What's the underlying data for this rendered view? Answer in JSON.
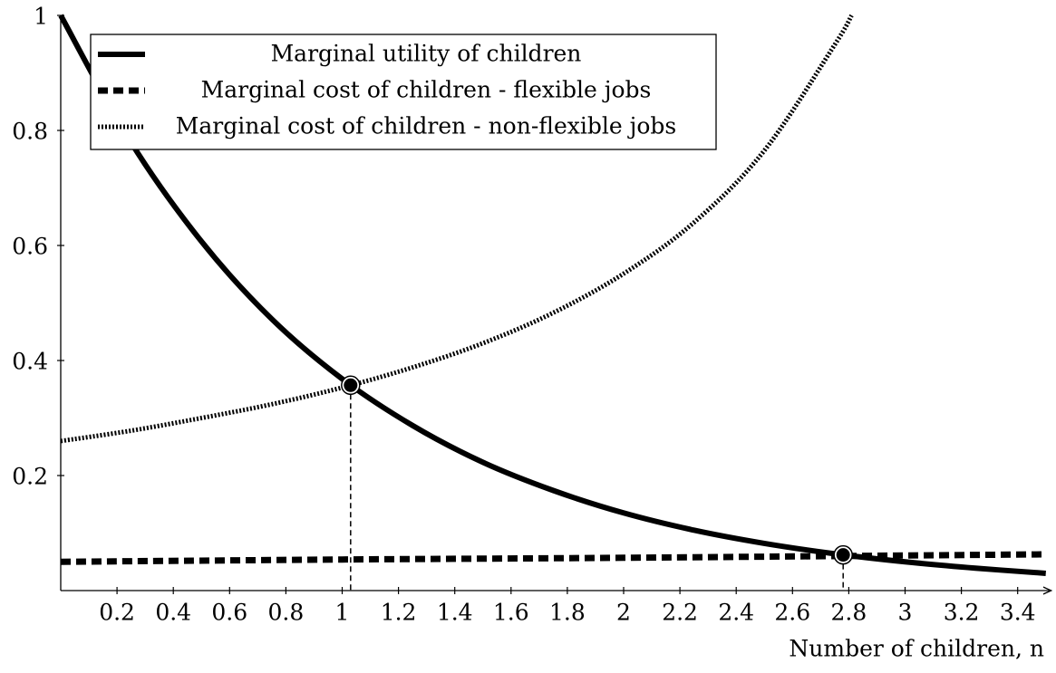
{
  "chart_data": {
    "type": "line",
    "xlabel": "Number of children, n",
    "xlim": [
      0,
      3.5
    ],
    "ylim": [
      0,
      1
    ],
    "xticks": [
      0.2,
      0.4,
      0.6,
      0.8,
      1,
      1.2,
      1.4,
      1.6,
      1.8,
      2,
      2.2,
      2.4,
      2.6,
      2.8,
      3,
      3.2,
      3.4
    ],
    "yticks": [
      0.2,
      0.4,
      0.6,
      0.8,
      1
    ],
    "legend": "top-left",
    "series": [
      {
        "name": "Marginal utility of children",
        "color": "#000000",
        "style": "solid",
        "x": [
          0,
          0.25,
          0.5,
          0.75,
          1,
          1.25,
          1.5,
          1.75,
          2,
          2.25,
          2.5,
          2.75,
          3,
          3.25,
          3.5
        ],
        "values": [
          1,
          0.779,
          0.607,
          0.472,
          0.368,
          0.287,
          0.223,
          0.174,
          0.135,
          0.105,
          0.082,
          0.064,
          0.05,
          0.039,
          0.03
        ]
      },
      {
        "name": "Marginal cost of children - flexible jobs",
        "color": "#000000",
        "style": "dashed",
        "x": [
          0,
          1,
          2,
          3,
          3.5
        ],
        "values": [
          0.05,
          0.054,
          0.057,
          0.061,
          0.063
        ]
      },
      {
        "name": "Marginal cost of children - non-flexible jobs",
        "color": "#000000",
        "style": "dotted",
        "x": [
          0,
          0.25,
          0.5,
          0.75,
          1,
          1.25,
          1.5,
          1.75,
          2,
          2.25,
          2.5,
          2.75,
          2.81
        ],
        "values": [
          0.26,
          0.278,
          0.3,
          0.324,
          0.353,
          0.388,
          0.43,
          0.483,
          0.551,
          0.64,
          0.765,
          0.949,
          1
        ]
      }
    ],
    "points": [
      {
        "x": 1.03,
        "y": 0.357
      },
      {
        "x": 2.78,
        "y": 0.062
      }
    ]
  }
}
